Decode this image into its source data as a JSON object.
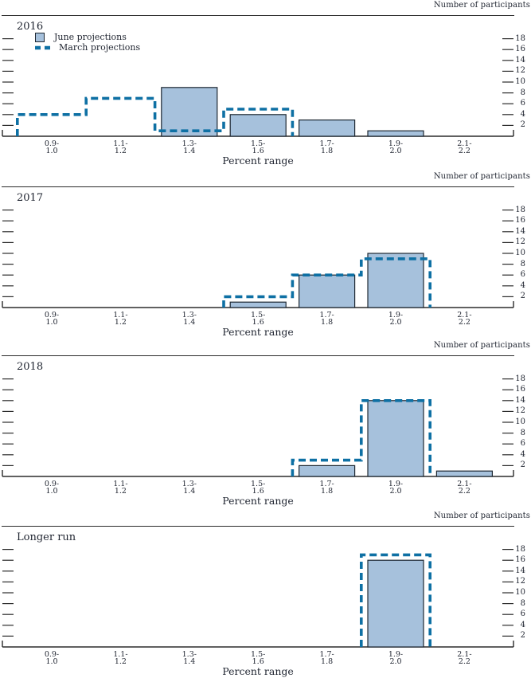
{
  "figure": {
    "right_axis_title": "Number of participants",
    "x_axis_title": "Percent range",
    "legend": {
      "june_label": "June projections",
      "march_label": "March projections"
    },
    "colors": {
      "bar_fill": "#a6c1dc",
      "bar_border": "#1e2832",
      "march_line": "#0e70a4",
      "axis": "#2b2b2b",
      "text": "#1f2430"
    }
  },
  "chart_data": [
    {
      "type": "bar",
      "title": "2016",
      "legend_visible": true,
      "categories": [
        [
          "0.9-",
          "1.0"
        ],
        [
          "1.1-",
          "1.2"
        ],
        [
          "1.3-",
          "1.4"
        ],
        [
          "1.5-",
          "1.6"
        ],
        [
          "1.7-",
          "1.8"
        ],
        [
          "1.9-",
          "2.0"
        ],
        [
          "2.1-",
          "2.2"
        ]
      ],
      "series": [
        {
          "name": "June projections",
          "style": "filled-bar",
          "values": [
            0,
            0,
            9,
            4,
            3,
            1,
            0
          ]
        },
        {
          "name": "March projections",
          "style": "dashed-step-outline",
          "values": [
            4,
            7,
            1,
            5,
            0,
            0,
            0
          ]
        }
      ],
      "xlabel": "Percent range",
      "ylabel_right": "Number of participants",
      "yticks": [
        2,
        4,
        6,
        8,
        10,
        12,
        14,
        16,
        18
      ],
      "ylim": [
        0,
        19
      ],
      "grid": false
    },
    {
      "type": "bar",
      "title": "2017",
      "legend_visible": false,
      "categories": [
        [
          "0.9-",
          "1.0"
        ],
        [
          "1.1-",
          "1.2"
        ],
        [
          "1.3-",
          "1.4"
        ],
        [
          "1.5-",
          "1.6"
        ],
        [
          "1.7-",
          "1.8"
        ],
        [
          "1.9-",
          "2.0"
        ],
        [
          "2.1-",
          "2.2"
        ]
      ],
      "series": [
        {
          "name": "June projections",
          "style": "filled-bar",
          "values": [
            0,
            0,
            0,
            1,
            6,
            10,
            0
          ]
        },
        {
          "name": "March projections",
          "style": "dashed-step-outline",
          "values": [
            0,
            0,
            0,
            2,
            6,
            9,
            0
          ]
        }
      ],
      "xlabel": "Percent range",
      "ylabel_right": "Number of participants",
      "yticks": [
        2,
        4,
        6,
        8,
        10,
        12,
        14,
        16,
        18
      ],
      "ylim": [
        0,
        19
      ],
      "grid": false
    },
    {
      "type": "bar",
      "title": "2018",
      "legend_visible": false,
      "categories": [
        [
          "0.9-",
          "1.0"
        ],
        [
          "1.1-",
          "1.2"
        ],
        [
          "1.3-",
          "1.4"
        ],
        [
          "1.5-",
          "1.6"
        ],
        [
          "1.7-",
          "1.8"
        ],
        [
          "1.9-",
          "2.0"
        ],
        [
          "2.1-",
          "2.2"
        ]
      ],
      "series": [
        {
          "name": "June projections",
          "style": "filled-bar",
          "values": [
            0,
            0,
            0,
            0,
            2,
            14,
            1
          ]
        },
        {
          "name": "March projections",
          "style": "dashed-step-outline",
          "values": [
            0,
            0,
            0,
            0,
            3,
            14,
            0
          ]
        }
      ],
      "xlabel": "Percent range",
      "ylabel_right": "Number of participants",
      "yticks": [
        2,
        4,
        6,
        8,
        10,
        12,
        14,
        16,
        18
      ],
      "ylim": [
        0,
        19
      ],
      "grid": false
    },
    {
      "type": "bar",
      "title": "Longer run",
      "legend_visible": false,
      "categories": [
        [
          "0.9-",
          "1.0"
        ],
        [
          "1.1-",
          "1.2"
        ],
        [
          "1.3-",
          "1.4"
        ],
        [
          "1.5-",
          "1.6"
        ],
        [
          "1.7-",
          "1.8"
        ],
        [
          "1.9-",
          "2.0"
        ],
        [
          "2.1-",
          "2.2"
        ]
      ],
      "series": [
        {
          "name": "June projections",
          "style": "filled-bar",
          "values": [
            0,
            0,
            0,
            0,
            0,
            16,
            0
          ]
        },
        {
          "name": "March projections",
          "style": "dashed-step-outline",
          "values": [
            0,
            0,
            0,
            0,
            0,
            17,
            0
          ]
        }
      ],
      "xlabel": "Percent range",
      "ylabel_right": "Number of participants",
      "yticks": [
        2,
        4,
        6,
        8,
        10,
        12,
        14,
        16,
        18
      ],
      "ylim": [
        0,
        19
      ],
      "grid": false
    }
  ]
}
